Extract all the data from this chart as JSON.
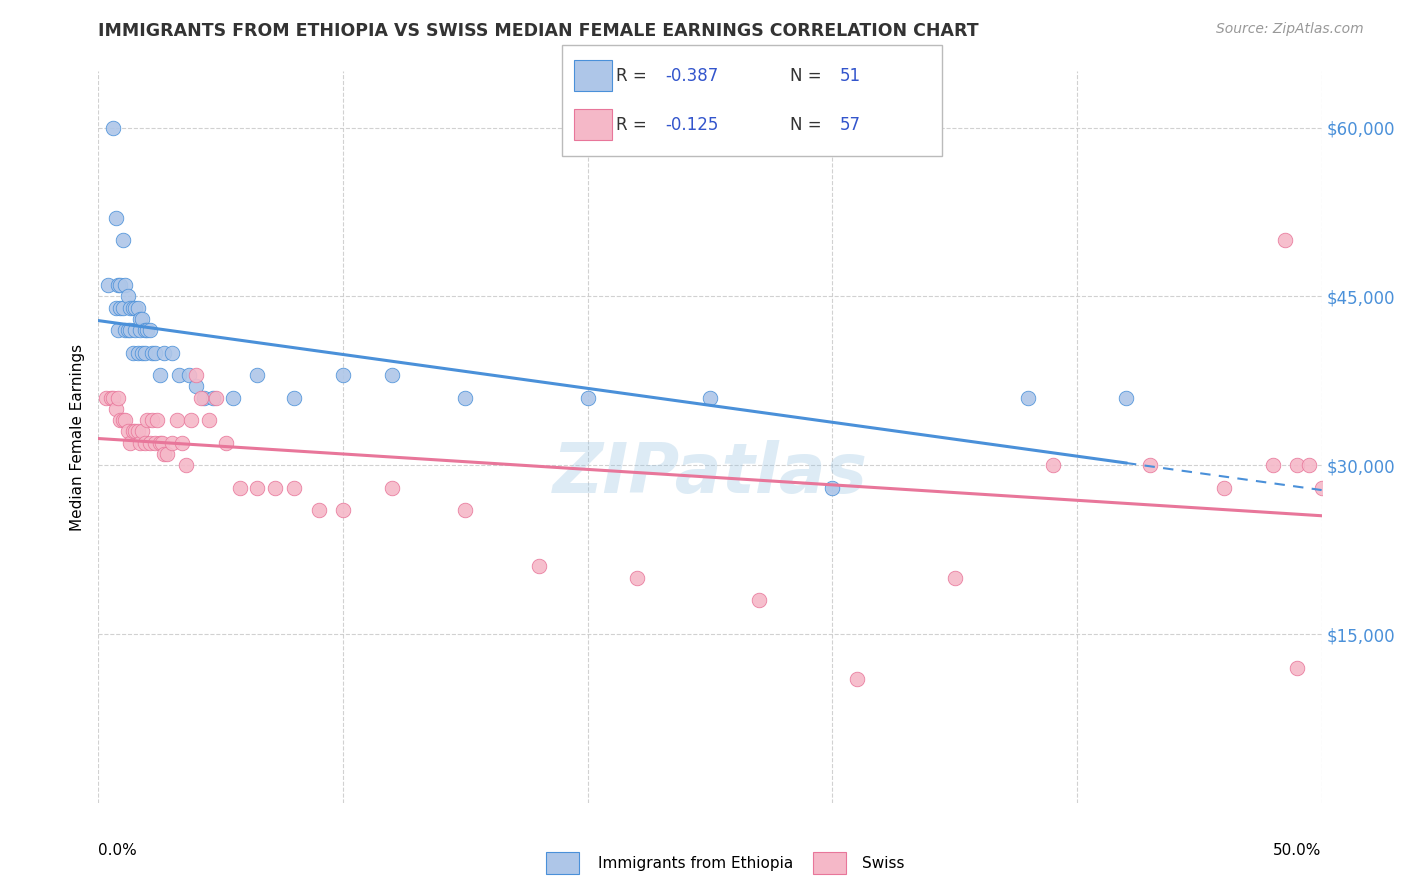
{
  "title": "IMMIGRANTS FROM ETHIOPIA VS SWISS MEDIAN FEMALE EARNINGS CORRELATION CHART",
  "source": "Source: ZipAtlas.com",
  "ylabel": "Median Female Earnings",
  "ytick_labels": [
    "$15,000",
    "$30,000",
    "$45,000",
    "$60,000"
  ],
  "ytick_values": [
    15000,
    30000,
    45000,
    60000
  ],
  "ymin": 0,
  "ymax": 65000,
  "xmin": 0.0,
  "xmax": 0.5,
  "blue_R": -0.387,
  "blue_N": 51,
  "pink_R": -0.125,
  "pink_N": 57,
  "blue_color": "#aec6e8",
  "pink_color": "#f5b8c8",
  "blue_line_color": "#4a90d9",
  "pink_line_color": "#e8769a",
  "legend_color": "#3355cc",
  "watermark": "ZIPatlas",
  "blue_scatter_x": [
    0.004,
    0.006,
    0.007,
    0.007,
    0.008,
    0.008,
    0.009,
    0.009,
    0.01,
    0.01,
    0.011,
    0.011,
    0.012,
    0.012,
    0.013,
    0.013,
    0.014,
    0.014,
    0.015,
    0.015,
    0.016,
    0.016,
    0.017,
    0.017,
    0.018,
    0.018,
    0.019,
    0.019,
    0.02,
    0.021,
    0.022,
    0.023,
    0.025,
    0.027,
    0.03,
    0.033,
    0.037,
    0.04,
    0.043,
    0.047,
    0.055,
    0.065,
    0.08,
    0.1,
    0.12,
    0.15,
    0.2,
    0.25,
    0.3,
    0.38,
    0.42
  ],
  "blue_scatter_y": [
    46000,
    60000,
    52000,
    44000,
    46000,
    42000,
    46000,
    44000,
    50000,
    44000,
    46000,
    42000,
    45000,
    42000,
    44000,
    42000,
    44000,
    40000,
    44000,
    42000,
    44000,
    40000,
    43000,
    42000,
    43000,
    40000,
    42000,
    40000,
    42000,
    42000,
    40000,
    40000,
    38000,
    40000,
    40000,
    38000,
    38000,
    37000,
    36000,
    36000,
    36000,
    38000,
    36000,
    38000,
    38000,
    36000,
    36000,
    36000,
    28000,
    36000,
    36000
  ],
  "pink_scatter_x": [
    0.003,
    0.005,
    0.006,
    0.007,
    0.008,
    0.009,
    0.01,
    0.011,
    0.012,
    0.013,
    0.014,
    0.015,
    0.016,
    0.017,
    0.018,
    0.019,
    0.02,
    0.021,
    0.022,
    0.023,
    0.024,
    0.025,
    0.026,
    0.027,
    0.028,
    0.03,
    0.032,
    0.034,
    0.036,
    0.038,
    0.04,
    0.042,
    0.045,
    0.048,
    0.052,
    0.058,
    0.065,
    0.072,
    0.08,
    0.09,
    0.1,
    0.12,
    0.15,
    0.18,
    0.22,
    0.27,
    0.31,
    0.35,
    0.39,
    0.43,
    0.46,
    0.48,
    0.49,
    0.495,
    0.5,
    0.49,
    0.485
  ],
  "pink_scatter_y": [
    36000,
    36000,
    36000,
    35000,
    36000,
    34000,
    34000,
    34000,
    33000,
    32000,
    33000,
    33000,
    33000,
    32000,
    33000,
    32000,
    34000,
    32000,
    34000,
    32000,
    34000,
    32000,
    32000,
    31000,
    31000,
    32000,
    34000,
    32000,
    30000,
    34000,
    38000,
    36000,
    34000,
    36000,
    32000,
    28000,
    28000,
    28000,
    28000,
    26000,
    26000,
    28000,
    26000,
    21000,
    20000,
    18000,
    11000,
    20000,
    30000,
    30000,
    28000,
    30000,
    30000,
    30000,
    28000,
    12000,
    50000
  ]
}
